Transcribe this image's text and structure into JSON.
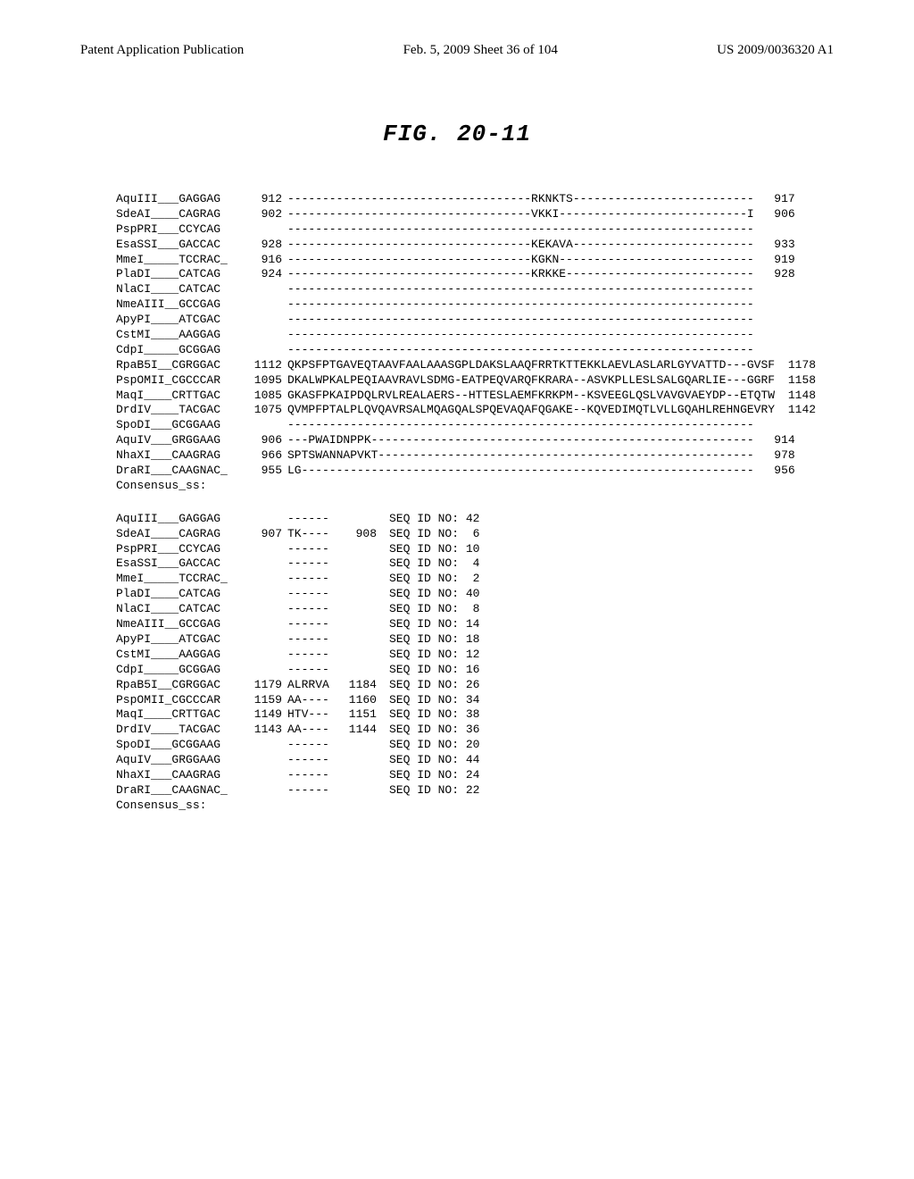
{
  "header": {
    "left": "Patent Application Publication",
    "center": "Feb. 5, 2009  Sheet 36 of 104",
    "right": "US 2009/0036320 A1"
  },
  "figure_title": "FIG. 20-11",
  "alignment_block1": {
    "rows": [
      {
        "name": "AquIII___GAGGAG",
        "start": "912",
        "seq": "-----------------------------------RKNKTS--------------------------",
        "end": "917"
      },
      {
        "name": "SdeAI____CAGRAG",
        "start": "902",
        "seq": "-----------------------------------VKKI---------------------------I",
        "end": "906"
      },
      {
        "name": "PspPRI___CCYCAG",
        "start": "",
        "seq": "-------------------------------------------------------------------",
        "end": ""
      },
      {
        "name": "EsaSSI___GACCAC",
        "start": "928",
        "seq": "-----------------------------------KEKAVA--------------------------",
        "end": "933"
      },
      {
        "name": "MmeI_____TCCRAC_",
        "start": "916",
        "seq": "-----------------------------------KGKN----------------------------",
        "end": "919"
      },
      {
        "name": "PlaDI____CATCAG",
        "start": "924",
        "seq": "-----------------------------------KRKKE---------------------------",
        "end": "928"
      },
      {
        "name": "NlaCI____CATCAC",
        "start": "",
        "seq": "-------------------------------------------------------------------",
        "end": ""
      },
      {
        "name": "NmeAIII__GCCGAG",
        "start": "",
        "seq": "-------------------------------------------------------------------",
        "end": ""
      },
      {
        "name": "ApyPI____ATCGAC",
        "start": "",
        "seq": "-------------------------------------------------------------------",
        "end": ""
      },
      {
        "name": "CstMI____AAGGAG",
        "start": "",
        "seq": "-------------------------------------------------------------------",
        "end": ""
      },
      {
        "name": "CdpI_____GCGGAG",
        "start": "",
        "seq": "-------------------------------------------------------------------",
        "end": ""
      },
      {
        "name": "RpaB5I__CGRGGAC",
        "start": "1112",
        "seq": "QKPSFPTGAVEQTAAVFAALAAASGPLDAKSLAAQFRRTKTTEKKLAEVLASLARLGYVATTD---GVSF",
        "end": "1178"
      },
      {
        "name": "PspOMII_CGCCCAR",
        "start": "1095",
        "seq": "DKALWPKALPEQIAAVRAVLSDMG-EATPEQVARQFKRARA--ASVKPLLESLSALGQARLIE---GGRF",
        "end": "1158"
      },
      {
        "name": "MaqI____CRTTGAC",
        "start": "1085",
        "seq": "GKASFPKAIPDQLRVLREALAERS--HTTESLAEMFKRKPM--KSVEEGLQSLVAVGVAEYDP--ETQTW",
        "end": "1148"
      },
      {
        "name": "DrdIV____TACGAC",
        "start": "1075",
        "seq": "QVMPFPTALPLQVQAVRSALMQAGQALSPQEVAQAFQGAKE--KQVEDIMQTLVLLGQAHLREHNGEVRY",
        "end": "1142"
      },
      {
        "name": "SpoDI___GCGGAAG",
        "start": "",
        "seq": "-------------------------------------------------------------------",
        "end": ""
      },
      {
        "name": "AquIV___GRGGAAG",
        "start": "906",
        "seq": "---PWAIDNPPK-------------------------------------------------------",
        "end": "914"
      },
      {
        "name": "NhaXI___CAAGRAG",
        "start": "966",
        "seq": "SPTSWANNAPVKT------------------------------------------------------",
        "end": "978"
      },
      {
        "name": "DraRI___CAAGNAC_",
        "start": "955",
        "seq": "LG-----------------------------------------------------------------",
        "end": "956"
      },
      {
        "name": "Consensus_ss:",
        "start": "",
        "seq": "",
        "end": ""
      }
    ]
  },
  "alignment_block2": {
    "rows": [
      {
        "name": "AquIII___GAGGAG",
        "start": "",
        "seq": "------",
        "end": "",
        "seqid": "SEQ ID NO: 42"
      },
      {
        "name": "SdeAI____CAGRAG",
        "start": "907",
        "seq": "TK----",
        "end": "908",
        "seqid": "SEQ ID NO:  6"
      },
      {
        "name": "PspPRI___CCYCAG",
        "start": "",
        "seq": "------",
        "end": "",
        "seqid": "SEQ ID NO: 10"
      },
      {
        "name": "EsaSSI___GACCAC",
        "start": "",
        "seq": "------",
        "end": "",
        "seqid": "SEQ ID NO:  4"
      },
      {
        "name": "MmeI_____TCCRAC_",
        "start": "",
        "seq": "------",
        "end": "",
        "seqid": "SEQ ID NO:  2"
      },
      {
        "name": "PlaDI____CATCAG",
        "start": "",
        "seq": "------",
        "end": "",
        "seqid": "SEQ ID NO: 40"
      },
      {
        "name": "NlaCI____CATCAC",
        "start": "",
        "seq": "------",
        "end": "",
        "seqid": "SEQ ID NO:  8"
      },
      {
        "name": "NmeAIII__GCCGAG",
        "start": "",
        "seq": "------",
        "end": "",
        "seqid": "SEQ ID NO: 14"
      },
      {
        "name": "ApyPI____ATCGAC",
        "start": "",
        "seq": "------",
        "end": "",
        "seqid": "SEQ ID NO: 18"
      },
      {
        "name": "CstMI____AAGGAG",
        "start": "",
        "seq": "------",
        "end": "",
        "seqid": "SEQ ID NO: 12"
      },
      {
        "name": "CdpI_____GCGGAG",
        "start": "",
        "seq": "------",
        "end": "",
        "seqid": "SEQ ID NO: 16"
      },
      {
        "name": "RpaB5I__CGRGGAC",
        "start": "1179",
        "seq": "ALRRVA",
        "end": "1184",
        "seqid": "SEQ ID NO: 26"
      },
      {
        "name": "PspOMII_CGCCCAR",
        "start": "1159",
        "seq": "AA----",
        "end": "1160",
        "seqid": "SEQ ID NO: 34"
      },
      {
        "name": "MaqI____CRTTGAC",
        "start": "1149",
        "seq": "HTV---",
        "end": "1151",
        "seqid": "SEQ ID NO: 38"
      },
      {
        "name": "DrdIV____TACGAC",
        "start": "1143",
        "seq": "AA----",
        "end": "1144",
        "seqid": "SEQ ID NO: 36"
      },
      {
        "name": "SpoDI___GCGGAAG",
        "start": "",
        "seq": "------",
        "end": "",
        "seqid": "SEQ ID NO: 20"
      },
      {
        "name": "AquIV___GRGGAAG",
        "start": "",
        "seq": "------",
        "end": "",
        "seqid": "SEQ ID NO: 44"
      },
      {
        "name": "NhaXI___CAAGRAG",
        "start": "",
        "seq": "------",
        "end": "",
        "seqid": "SEQ ID NO: 24"
      },
      {
        "name": "DraRI___CAAGNAC_",
        "start": "",
        "seq": "------",
        "end": "",
        "seqid": "SEQ ID NO: 22"
      },
      {
        "name": "Consensus_ss:",
        "start": "",
        "seq": "",
        "end": "",
        "seqid": ""
      }
    ]
  }
}
